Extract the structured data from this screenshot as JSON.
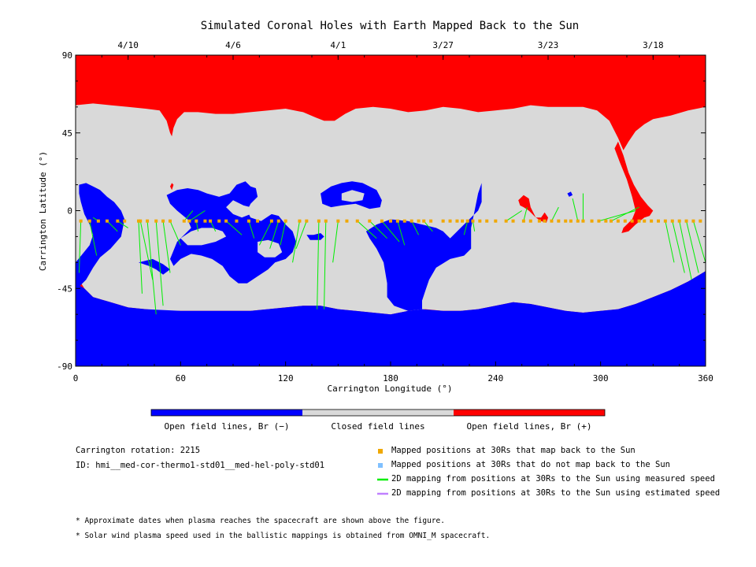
{
  "colors": {
    "open_negative": "#0000ff",
    "closed": "#d9d9d9",
    "open_positive": "#ff0000",
    "mapped_back": "#f0a800",
    "not_mapped_back": "#80c0ff",
    "measured_speed_line": "#00ee00",
    "estimated_speed_line": "#c080ff"
  },
  "chart_data": {
    "type": "heatmap",
    "title": "Simulated Coronal Holes with Earth Mapped Back to the Sun",
    "xlabel": "Carrington Longitude (°)",
    "ylabel": "Carrington Latitude (°)",
    "xlim": [
      0,
      360
    ],
    "ylim": [
      -90,
      90
    ],
    "x_ticks": [
      0,
      60,
      120,
      180,
      240,
      300,
      360
    ],
    "y_ticks": [
      -90,
      -45,
      0,
      45,
      90
    ],
    "top_axis_dates": [
      {
        "label": "4/10",
        "lon": 30
      },
      {
        "label": "4/6",
        "lon": 90
      },
      {
        "label": "4/1",
        "lon": 150
      },
      {
        "label": "3/27",
        "lon": 210
      },
      {
        "label": "3/23",
        "lon": 270
      },
      {
        "label": "3/18",
        "lon": 330
      }
    ],
    "colorbar": [
      {
        "label": "Open field lines, Br (−)",
        "color": "#0000ff"
      },
      {
        "label": "Closed field lines",
        "color": "#d9d9d9"
      },
      {
        "label": "Open field lines, Br (+)",
        "color": "#ff0000"
      }
    ],
    "earth_track_lat": -6,
    "mapped_points_lon": [
      3,
      8,
      13,
      18,
      24,
      28,
      36,
      37,
      41,
      46,
      50,
      54,
      62,
      65,
      69,
      74,
      77,
      82,
      86,
      92,
      99,
      104,
      112,
      116,
      120,
      128,
      132,
      139,
      143,
      150,
      155,
      161,
      168,
      175,
      180,
      184,
      188,
      192,
      196,
      199,
      203,
      210,
      214,
      218,
      221,
      224,
      227,
      231,
      235,
      240,
      246,
      250,
      256,
      260,
      265,
      268,
      272,
      276,
      280,
      283,
      287,
      290,
      295,
      299,
      303,
      306,
      310,
      314,
      318,
      322,
      325,
      329,
      333,
      337,
      341,
      345,
      349,
      353,
      357
    ],
    "mapped_lines": [
      {
        "from": [
          3,
          -6
        ],
        "to": [
          2,
          -36
        ]
      },
      {
        "from": [
          8,
          -6
        ],
        "to": [
          12,
          -26
        ]
      },
      {
        "from": [
          13,
          -6
        ],
        "to": [
          10,
          -4
        ]
      },
      {
        "from": [
          18,
          -6
        ],
        "to": [
          24,
          -12
        ]
      },
      {
        "from": [
          24,
          -6
        ],
        "to": [
          30,
          -10
        ]
      },
      {
        "from": [
          36,
          -6
        ],
        "to": [
          38,
          -48
        ]
      },
      {
        "from": [
          37,
          -6
        ],
        "to": [
          44,
          -40
        ]
      },
      {
        "from": [
          41,
          -6
        ],
        "to": [
          46,
          -60
        ]
      },
      {
        "from": [
          46,
          -6
        ],
        "to": [
          50,
          -55
        ]
      },
      {
        "from": [
          50,
          -6
        ],
        "to": [
          54,
          -36
        ]
      },
      {
        "from": [
          54,
          -6
        ],
        "to": [
          60,
          -20
        ]
      },
      {
        "from": [
          62,
          -6
        ],
        "to": [
          67,
          0
        ]
      },
      {
        "from": [
          65,
          -6
        ],
        "to": [
          74,
          0
        ]
      },
      {
        "from": [
          69,
          -6
        ],
        "to": [
          70,
          -12
        ]
      },
      {
        "from": [
          77,
          -6
        ],
        "to": [
          80,
          -12
        ]
      },
      {
        "from": [
          86,
          -6
        ],
        "to": [
          95,
          -14
        ]
      },
      {
        "from": [
          99,
          -6
        ],
        "to": [
          102,
          -16
        ]
      },
      {
        "from": [
          112,
          -6
        ],
        "to": [
          105,
          -20
        ]
      },
      {
        "from": [
          116,
          -6
        ],
        "to": [
          111,
          -22
        ]
      },
      {
        "from": [
          120,
          -6
        ],
        "to": [
          117,
          -20
        ]
      },
      {
        "from": [
          128,
          -6
        ],
        "to": [
          124,
          -30
        ]
      },
      {
        "from": [
          132,
          -6
        ],
        "to": [
          126,
          -22
        ]
      },
      {
        "from": [
          139,
          -6
        ],
        "to": [
          138,
          -57
        ]
      },
      {
        "from": [
          143,
          -6
        ],
        "to": [
          142,
          -57
        ]
      },
      {
        "from": [
          150,
          -6
        ],
        "to": [
          147,
          -30
        ]
      },
      {
        "from": [
          161,
          -6
        ],
        "to": [
          172,
          -16
        ]
      },
      {
        "from": [
          168,
          -6
        ],
        "to": [
          178,
          -16
        ]
      },
      {
        "from": [
          175,
          -6
        ],
        "to": [
          185,
          -18
        ]
      },
      {
        "from": [
          184,
          -6
        ],
        "to": [
          188,
          -20
        ]
      },
      {
        "from": [
          192,
          -6
        ],
        "to": [
          196,
          -14
        ]
      },
      {
        "from": [
          199,
          -6
        ],
        "to": [
          204,
          -12
        ]
      },
      {
        "from": [
          224,
          -6
        ],
        "to": [
          222,
          -14
        ]
      },
      {
        "from": [
          227,
          -6
        ],
        "to": [
          228,
          -12
        ]
      },
      {
        "from": [
          246,
          -6
        ],
        "to": [
          255,
          0
        ]
      },
      {
        "from": [
          256,
          -6
        ],
        "to": [
          258,
          2
        ]
      },
      {
        "from": [
          272,
          -6
        ],
        "to": [
          276,
          2
        ]
      },
      {
        "from": [
          287,
          -6
        ],
        "to": [
          284,
          7
        ]
      },
      {
        "from": [
          290,
          -6
        ],
        "to": [
          290,
          10
        ]
      },
      {
        "from": [
          299,
          -6
        ],
        "to": [
          320,
          0
        ]
      },
      {
        "from": [
          306,
          -6
        ],
        "to": [
          322,
          2
        ]
      },
      {
        "from": [
          337,
          -6
        ],
        "to": [
          342,
          -30
        ]
      },
      {
        "from": [
          341,
          -6
        ],
        "to": [
          348,
          -36
        ]
      },
      {
        "from": [
          345,
          -6
        ],
        "to": [
          352,
          -40
        ]
      },
      {
        "from": [
          349,
          -6
        ],
        "to": [
          356,
          -36
        ]
      },
      {
        "from": [
          353,
          -6
        ],
        "to": [
          360,
          -30
        ]
      }
    ]
  },
  "info": {
    "rotation": "Carrington rotation: 2215",
    "id": "ID: hmi__med-cor-thermo1-std01__med-hel-poly-std01"
  },
  "legend": [
    {
      "label": "Mapped positions at 30Rs that map back to the Sun",
      "kind": "square",
      "color": "#f0a800"
    },
    {
      "label": "Mapped positions at 30Rs that do not map back to the Sun",
      "kind": "square",
      "color": "#80c0ff"
    },
    {
      "label": "2D mapping from positions at 30Rs to the Sun using measured speed",
      "kind": "line",
      "color": "#00ee00"
    },
    {
      "label": "2D mapping from positions at 30Rs to the Sun using estimated speed",
      "kind": "line",
      "color": "#c080ff"
    }
  ],
  "notes": [
    "* Approximate dates when plasma reaches the spacecraft are shown above the figure.",
    "* Solar wind plasma speed used in the ballistic mappings is obtained from OMNI_M spacecraft."
  ]
}
